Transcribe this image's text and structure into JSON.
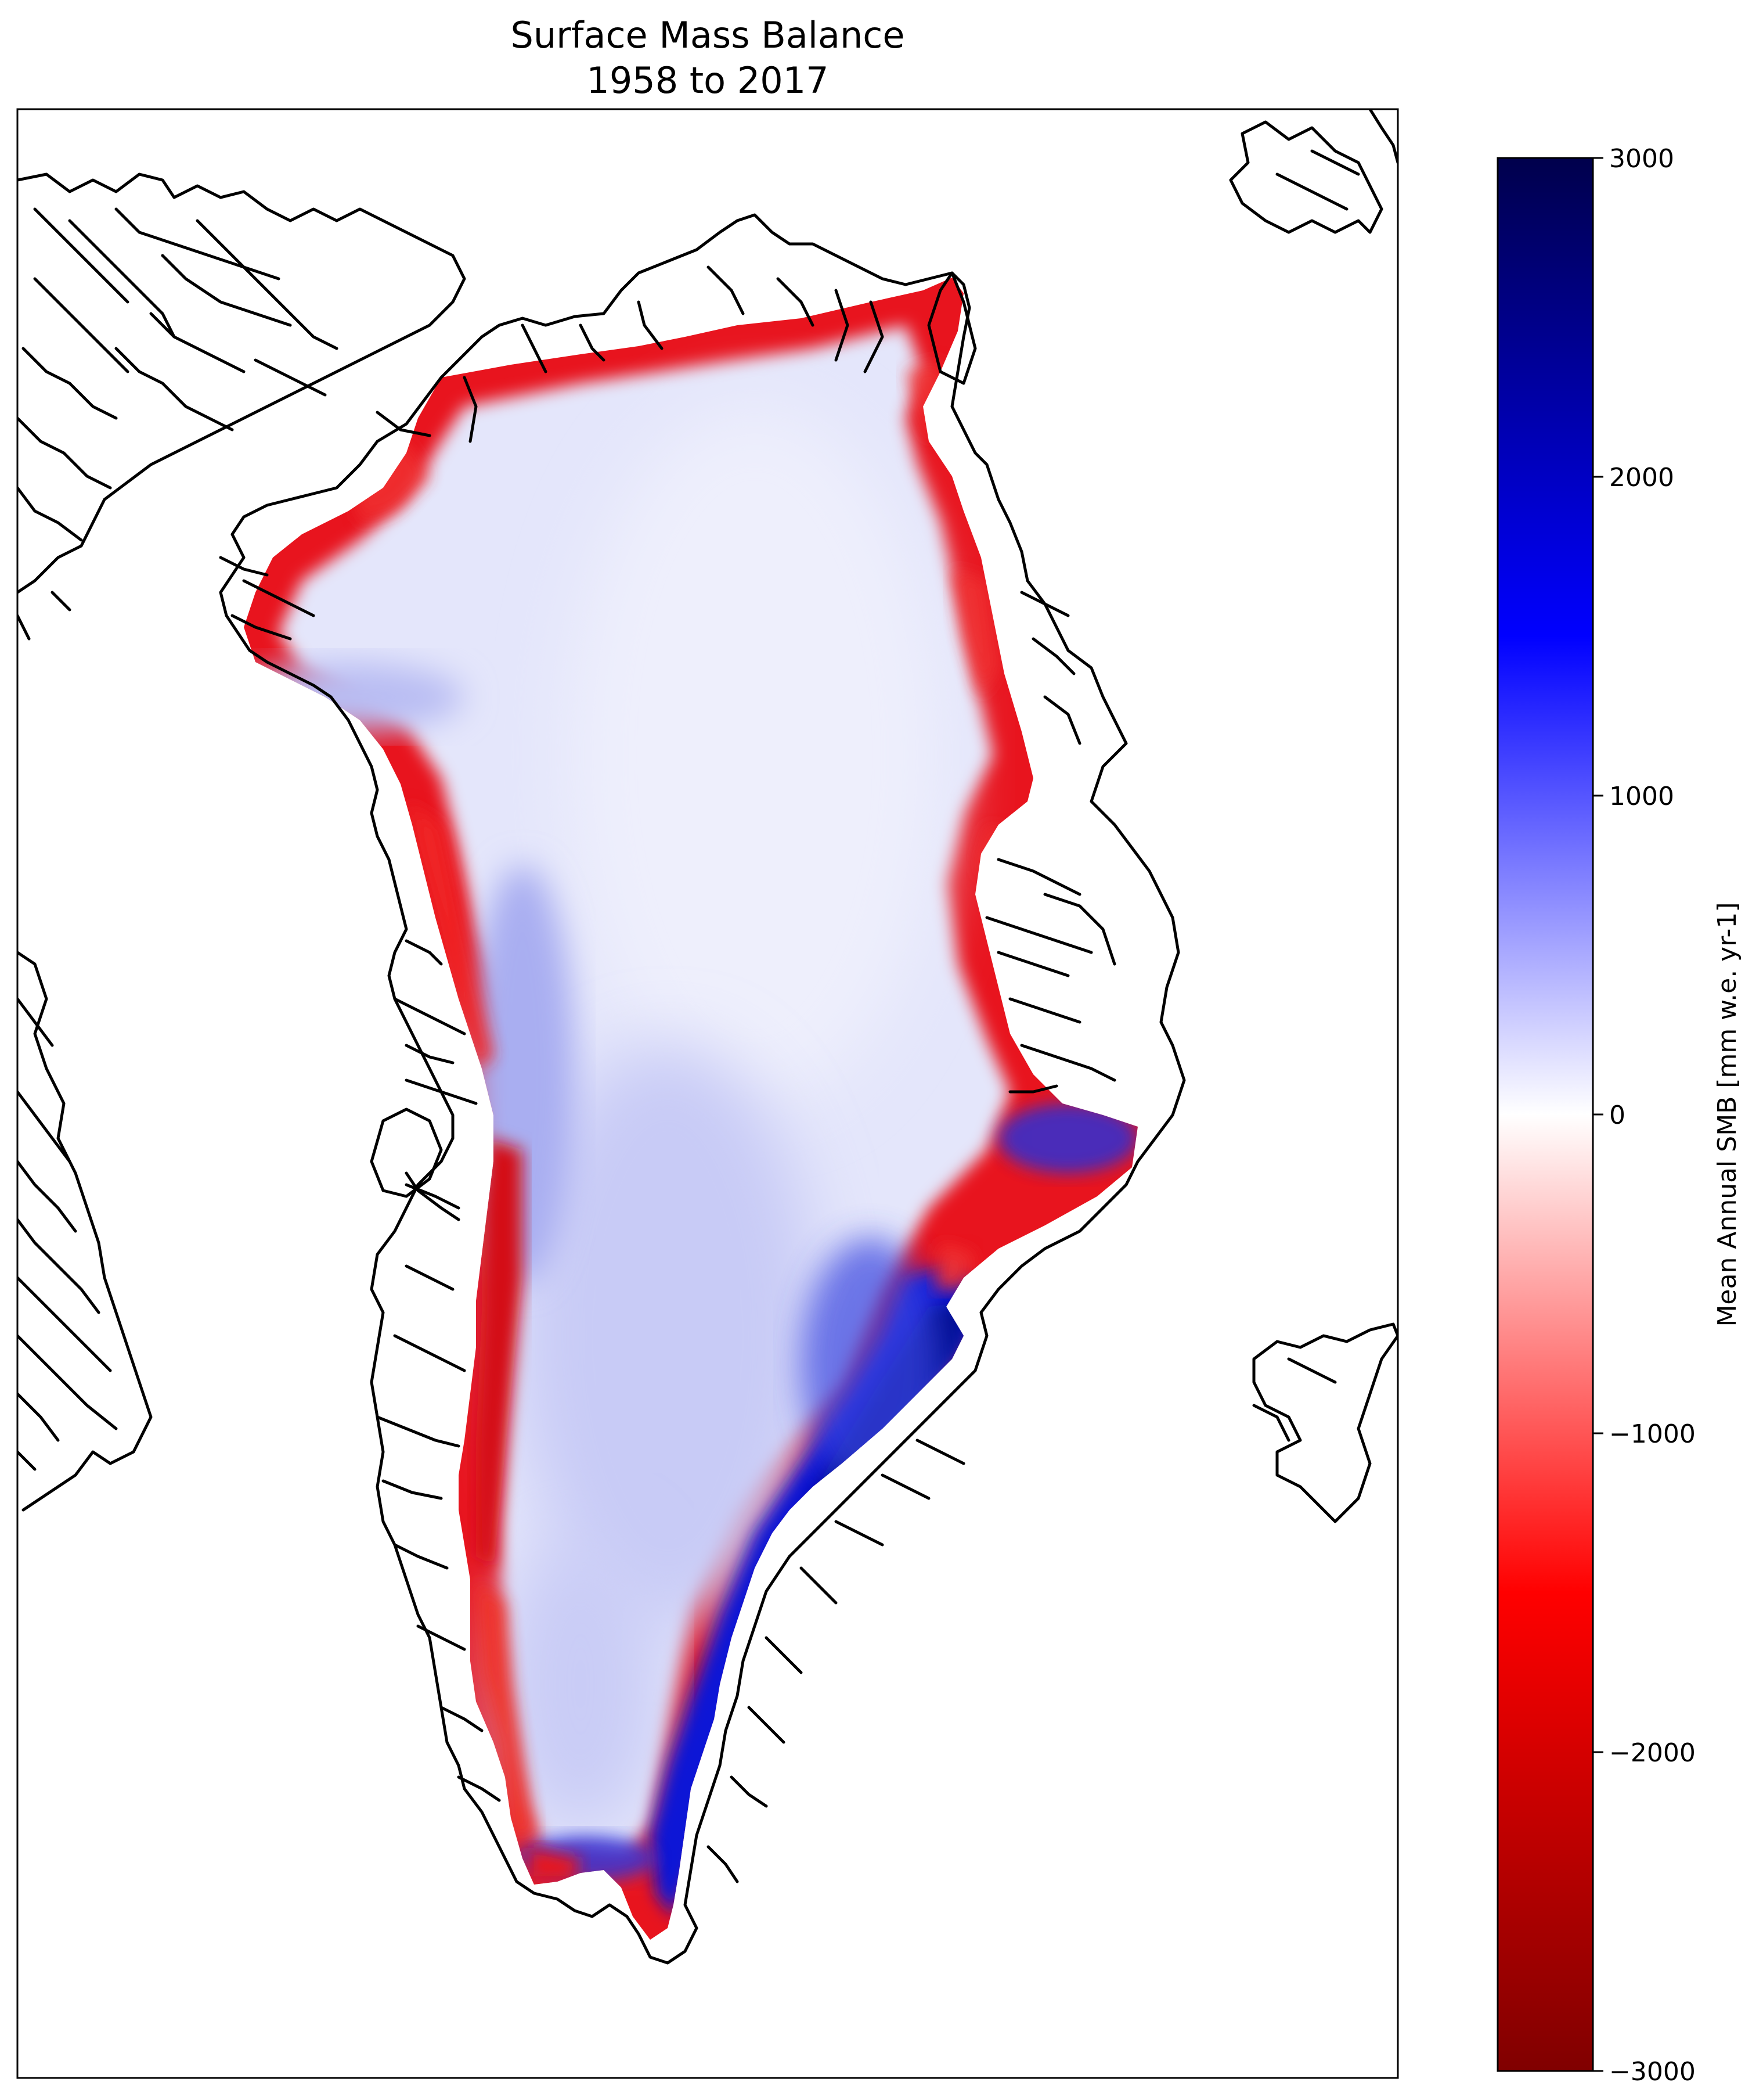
{
  "title": {
    "line1": "Surface Mass Balance",
    "line2": "1958 to 2017"
  },
  "colorbar": {
    "label": "Mean Annual SMB [mm w.e. yr-1]",
    "min": -3000,
    "max": 3000,
    "ticks": [
      {
        "value": 3000,
        "label": "3000"
      },
      {
        "value": 2000,
        "label": "2000"
      },
      {
        "value": 1000,
        "label": "1000"
      },
      {
        "value": 0,
        "label": "0"
      },
      {
        "value": -1000,
        "label": "−1000"
      },
      {
        "value": -2000,
        "label": "−2000"
      },
      {
        "value": -3000,
        "label": "−3000"
      }
    ],
    "colormap": "seismic_r",
    "colors": {
      "high_end": "#00004c",
      "high_mid": "#0000ff",
      "zero": "#ffffff",
      "low_mid": "#ff0000",
      "low_end": "#800000"
    }
  },
  "map": {
    "region": "Greenland",
    "coastline_color": "#000000",
    "ice_interior_color": "#e4e6fb",
    "ablation_margin_color": "#e8141e",
    "accumulation_southeast_color": "#0010d8"
  }
}
